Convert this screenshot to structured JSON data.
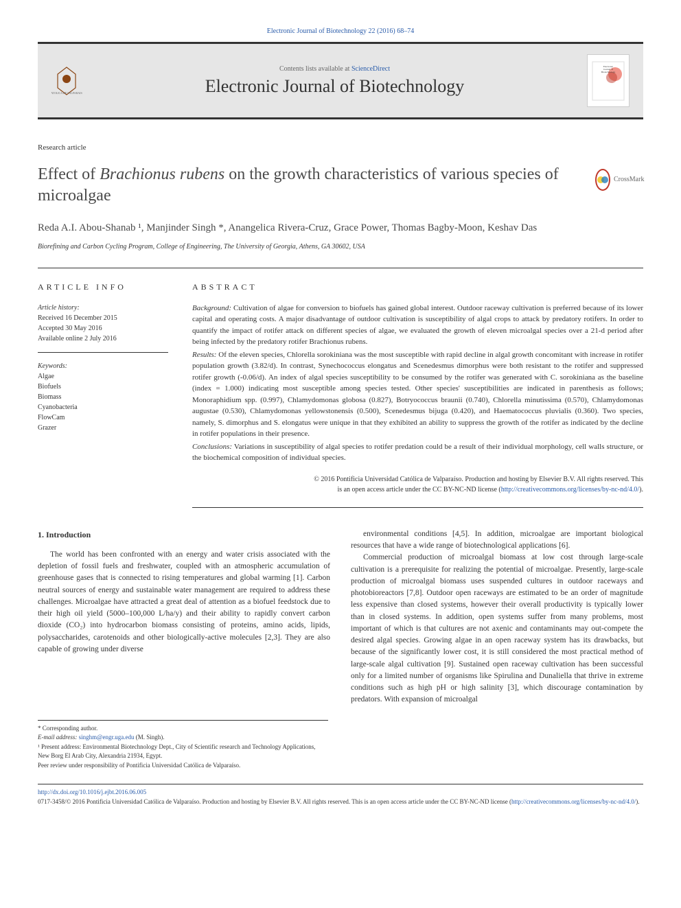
{
  "header": {
    "journal_ref": "Electronic Journal of Biotechnology 22 (2016) 68–74",
    "contents_line": "Contents lists available at ",
    "contents_link": "ScienceDirect",
    "journal_name": "Electronic Journal of Biotechnology",
    "publisher_label": "CATOLICA DE VALPARAISO"
  },
  "article": {
    "type": "Research article",
    "title_html": "Effect of <em>Brachionus rubens</em> on the growth characteristics of various species of microalgae",
    "crossmark_label": "CrossMark",
    "authors": "Reda A.I. Abou-Shanab ¹, Manjinder Singh *, Anangelica Rivera-Cruz, Grace Power, Thomas Bagby-Moon, Keshav Das",
    "affiliation": "Biorefining and Carbon Cycling Program, College of Engineering, The University of Georgia, Athens, GA 30602, USA"
  },
  "info": {
    "heading": "ARTICLE INFO",
    "history_label": "Article history:",
    "history_lines": [
      "Received 16 December 2015",
      "Accepted 30 May 2016",
      "Available online 2 July 2016"
    ],
    "keywords_label": "Keywords:",
    "keywords": [
      "Algae",
      "Biofuels",
      "Biomass",
      "Cyanobacteria",
      "FlowCam",
      "Grazer"
    ]
  },
  "abstract": {
    "heading": "ABSTRACT",
    "background_lead": "Background:",
    "background": " Cultivation of algae for conversion to biofuels has gained global interest. Outdoor raceway cultivation is preferred because of its lower capital and operating costs. A major disadvantage of outdoor cultivation is susceptibility of algal crops to attack by predatory rotifers. In order to quantify the impact of rotifer attack on different species of algae, we evaluated the growth of eleven microalgal species over a 21-d period after being infected by the predatory rotifer Brachionus rubens.",
    "results_lead": "Results:",
    "results": " Of the eleven species, Chlorella sorokiniana was the most susceptible with rapid decline in algal growth concomitant with increase in rotifer population growth (3.82/d). In contrast, Synechococcus elongatus and Scenedesmus dimorphus were both resistant to the rotifer and suppressed rotifer growth (-0.06/d). An index of algal species susceptibility to be consumed by the rotifer was generated with C. sorokiniana as the baseline (index = 1.000) indicating most susceptible among species tested. Other species' susceptibilities are indicated in parenthesis as follows; Monoraphidium spp. (0.997), Chlamydomonas globosa (0.827), Botryococcus braunii (0.740), Chlorella minutissima (0.570), Chlamydomonas augustae (0.530), Chlamydomonas yellowstonensis (0.500), Scenedesmus bijuga (0.420), and Haematococcus pluvialis (0.360). Two species, namely, S. dimorphus and S. elongatus were unique in that they exhibited an ability to suppress the growth of the rotifer as indicated by the decline in rotifer populations in their presence.",
    "conclusions_lead": "Conclusions:",
    "conclusions": " Variations in susceptibility of algal species to rotifer predation could be a result of their individual morphology, cell walls structure, or the biochemical composition of individual species.",
    "copyright_line1": "© 2016 Pontificia Universidad Católica de Valparaíso. Production and hosting by Elsevier B.V. All rights reserved. This",
    "copyright_line2": "is an open access article under the CC BY-NC-ND license (",
    "license_url": "http://creativecommons.org/licenses/by-nc-nd/4.0/",
    "copyright_close": ")."
  },
  "body": {
    "intro_heading": "1. Introduction",
    "col1_para1": "The world has been confronted with an energy and water crisis associated with the depletion of fossil fuels and freshwater, coupled with an atmospheric accumulation of greenhouse gases that is connected to rising temperatures and global warming [1]. Carbon neutral sources of energy and sustainable water management are required to address these challenges. Microalgae have attracted a great deal of attention as a biofuel feedstock due to their high oil yield (5000–100,000 L/ha/y) and their ability to rapidly convert carbon dioxide (CO₂) into hydrocarbon biomass consisting of proteins, amino acids, lipids, polysaccharides, carotenoids and other biologically-active molecules [2,3]. They are also capable of growing under diverse",
    "col2_para1": "environmental conditions [4,5]. In addition, microalgae are important biological resources that have a wide range of biotechnological applications [6].",
    "col2_para2": "Commercial production of microalgal biomass at low cost through large-scale cultivation is a prerequisite for realizing the potential of microalgae. Presently, large-scale production of microalgal biomass uses suspended cultures in outdoor raceways and photobioreactors [7,8]. Outdoor open raceways are estimated to be an order of magnitude less expensive than closed systems, however their overall productivity is typically lower than in closed systems. In addition, open systems suffer from many problems, most important of which is that cultures are not axenic and contaminants may out-compete the desired algal species. Growing algae in an open raceway system has its drawbacks, but because of the significantly lower cost, it is still considered the most practical method of large-scale algal cultivation [9]. Sustained open raceway cultivation has been successful only for a limited number of organisms like Spirulina and Dunaliella that thrive in extreme conditions such as high pH or high salinity [3], which discourage contamination by predators. With expansion of microalgal"
  },
  "footnotes": {
    "corresponding": "* Corresponding author.",
    "email_label": "E-mail address: ",
    "email": "singhm@engr.uga.edu",
    "email_suffix": " (M. Singh).",
    "present_address": "¹ Present address: Environmental Biotechnology Dept., City of Scientific research and Technology Applications, New Borg El Arab City, Alexandria 21934, Egypt.",
    "peer_review": "Peer review under responsibility of Pontificia Universidad Católica de Valparaíso."
  },
  "footer": {
    "doi": "http://dx.doi.org/10.1016/j.ejbt.2016.06.005",
    "issn_line": "0717-3458/© 2016 Pontificia Universidad Católica de Valparaíso. Production and hosting by Elsevier B.V. All rights reserved. This is an open access article under the CC BY-NC-ND license (",
    "license_url": "http://creativecommons.org/licenses/by-nc-nd/4.0/",
    "close": ")."
  },
  "colors": {
    "link": "#2a5caa",
    "text": "#333333",
    "masthead_bg": "#e6e6e6",
    "crossmark_ring": "#c0392b"
  }
}
